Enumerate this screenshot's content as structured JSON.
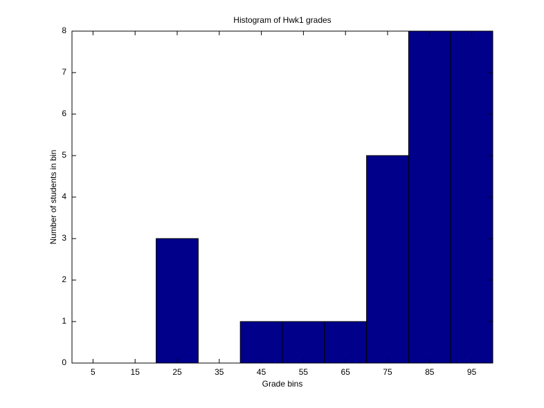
{
  "chart_data": {
    "type": "histogram",
    "title": "Histogram of Hwk1 grades",
    "x_label": "Grade bins",
    "y_label": "Number of students in bin",
    "bins": [
      0,
      10,
      20,
      30,
      40,
      50,
      60,
      70,
      80,
      90,
      100
    ],
    "values": [
      0,
      0,
      3,
      0,
      1,
      1,
      1,
      5,
      8,
      8
    ],
    "color": "#00008b",
    "xlim": [
      0,
      100
    ],
    "xticks": [
      5,
      15,
      25,
      35,
      45,
      55,
      65,
      75,
      85,
      95
    ],
    "ylim": [
      0,
      8
    ],
    "yticks": [
      0,
      1,
      2,
      3,
      4,
      5,
      6,
      7,
      8
    ]
  }
}
